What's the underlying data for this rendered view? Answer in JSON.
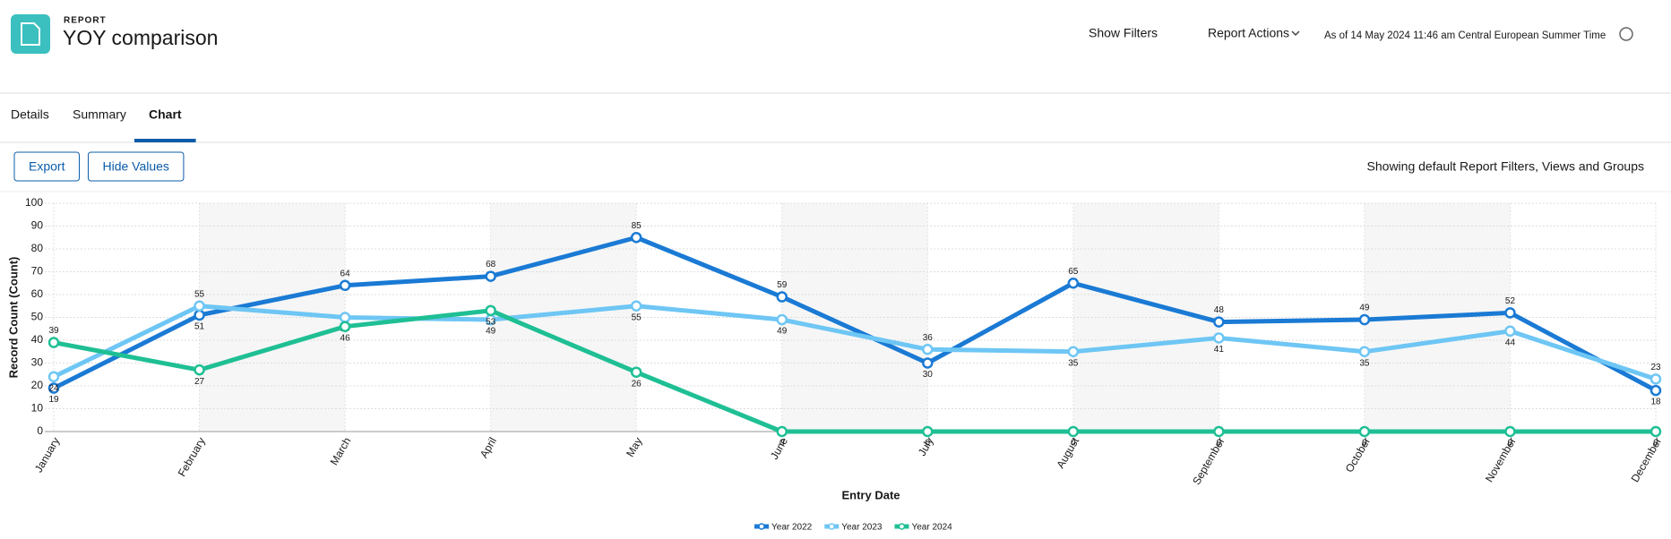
{
  "header": {
    "label": "REPORT",
    "title": "YOY comparison",
    "show_filters": "Show Filters",
    "report_actions": "Report Actions",
    "as_of": "As of 14 May 2024 11:46 am Central European Summer Time"
  },
  "tabs": [
    "Details",
    "Summary",
    "Chart"
  ],
  "buttons": [
    "Export",
    "Hide Values"
  ],
  "filter_note": "Showing default Report Filters, Views and Groups",
  "chart_data": {
    "type": "line",
    "x_label": "Entry Date",
    "y_label": "Record Count (Count)",
    "categories": [
      "January",
      "February",
      "March",
      "April",
      "May",
      "June",
      "July",
      "August",
      "September",
      "October",
      "November",
      "December"
    ],
    "series": [
      {
        "name": "Year 2022",
        "color": "#1a7ad4",
        "values": [
          19,
          51,
          64,
          68,
          85,
          59,
          30,
          65,
          48,
          49,
          52,
          18
        ]
      },
      {
        "name": "Year 2023",
        "color": "#6ec6f4",
        "values": [
          24,
          55,
          50,
          49,
          55,
          49,
          36,
          35,
          41,
          35,
          44,
          23
        ]
      },
      {
        "name": "Year 2024",
        "color": "#1fbf94",
        "values": [
          39,
          27,
          46,
          53,
          26,
          0,
          0,
          0,
          0,
          0,
          0,
          0
        ]
      }
    ],
    "ylim": [
      0,
      100
    ],
    "yticks": [
      0,
      10,
      20,
      30,
      40,
      50,
      60,
      70,
      80,
      90,
      100
    ],
    "grid": true,
    "legend": "bottom"
  }
}
